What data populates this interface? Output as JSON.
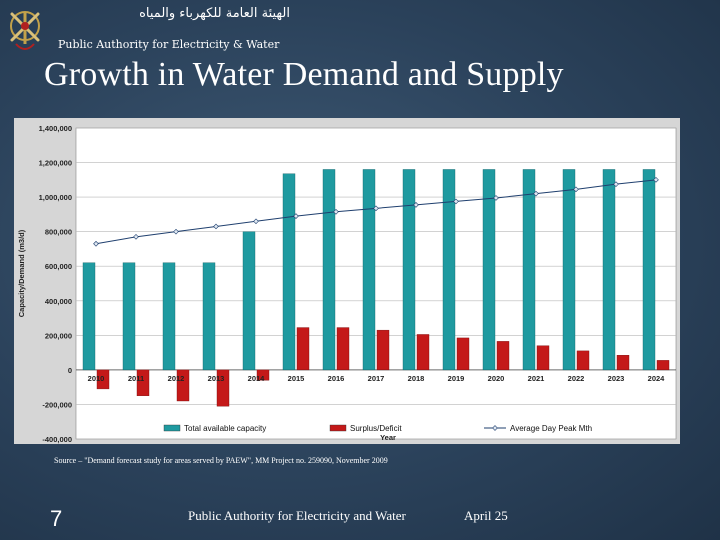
{
  "header": {
    "org_arabic": "الهيئة العامة للكهرباء والمياه",
    "org_english": "Public Authority for Electricity & Water",
    "logo_icon": "oman-emblem-icon"
  },
  "slide": {
    "title": "Growth in Water Demand and Supply",
    "source": "Source – \"Demand forecast study for areas served by PAEW\", MM Project no. 259090, November 2009",
    "number": "7",
    "footer_org": "Public Authority for Electricity and Water",
    "footer_date": "April 25"
  },
  "colors": {
    "capacity": "#1f9aa0",
    "surplus": "#c41919",
    "peak": "#1f3f6e",
    "plot_bg": "#ffffff",
    "chart_bg": "#d6d6d6"
  },
  "chart_data": {
    "type": "bar",
    "categories": [
      "2010",
      "2011",
      "2012",
      "2013",
      "2014",
      "2015",
      "2016",
      "2017",
      "2018",
      "2019",
      "2020",
      "2021",
      "2022",
      "2023",
      "2024"
    ],
    "series": [
      {
        "name": "Total available capacity",
        "kind": "bar",
        "values": [
          620000,
          620000,
          620000,
          620000,
          800000,
          1135000,
          1160000,
          1160000,
          1160000,
          1160000,
          1160000,
          1160000,
          1160000,
          1160000,
          1160000
        ]
      },
      {
        "name": "Surplus/Deficit",
        "kind": "bar",
        "values": [
          -110000,
          -150000,
          -180000,
          -210000,
          -60000,
          245000,
          245000,
          230000,
          205000,
          185000,
          165000,
          140000,
          110000,
          85000,
          55000
        ]
      },
      {
        "name": "Average Day Peak Mth",
        "kind": "line",
        "values": [
          730000,
          770000,
          800000,
          830000,
          860000,
          890000,
          915000,
          935000,
          955000,
          975000,
          995000,
          1020000,
          1045000,
          1075000,
          1100000
        ]
      }
    ],
    "yticks": [
      "1,400,000",
      "1,200,000",
      "1,000,000",
      "800,000",
      "600,000",
      "400,000",
      "200,000",
      "0",
      "-200,000",
      "-400,000"
    ],
    "ylim": [
      -400000,
      1400000
    ],
    "xlabel": "Year",
    "ylabel": "Capacity/Demand (m3/d)",
    "legend_position": "bottom",
    "grid": true
  }
}
